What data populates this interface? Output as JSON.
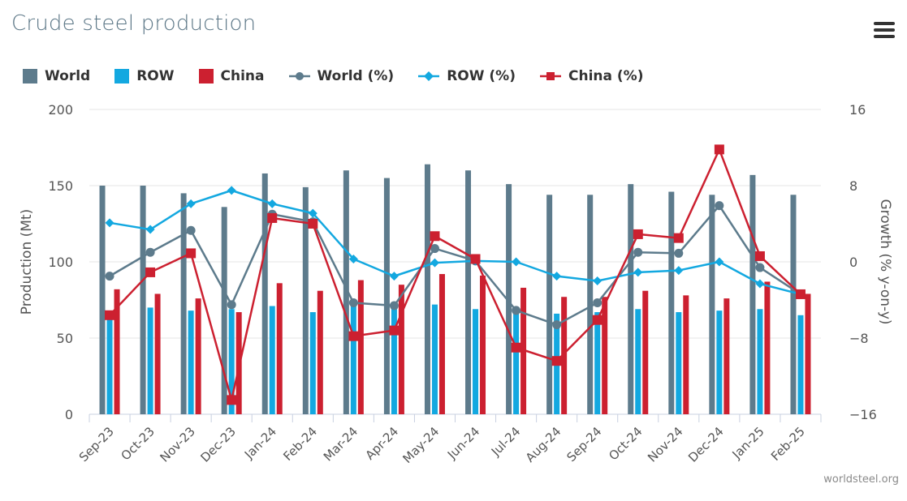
{
  "title": "Crude steel production",
  "menu_icon": "hamburger-menu-icon",
  "credit": "worldsteel.org",
  "colors": {
    "world": "#5d7b8c",
    "row": "#13a8e0",
    "china": "#cc2030",
    "grid": "#e6e6e6",
    "axis_text": "#555555"
  },
  "legend": [
    {
      "label": "World",
      "kind": "bar",
      "color": "#5d7b8c"
    },
    {
      "label": "ROW",
      "kind": "bar",
      "color": "#13a8e0"
    },
    {
      "label": "China",
      "kind": "bar",
      "color": "#cc2030"
    },
    {
      "label": "World (%)",
      "kind": "line-circle",
      "color": "#5d7b8c"
    },
    {
      "label": "ROW (%)",
      "kind": "line-diamond",
      "color": "#13a8e0"
    },
    {
      "label": "China (%)",
      "kind": "line-square",
      "color": "#cc2030"
    }
  ],
  "chart_data": {
    "type": "bar",
    "title": "Crude steel production",
    "categories": [
      "Sep-23",
      "Oct-23",
      "Nov-23",
      "Dec-23",
      "Jan-24",
      "Feb-24",
      "Mar-24",
      "Apr-24",
      "May-24",
      "Jun-24",
      "Jul-24",
      "Aug-24",
      "Sep-24",
      "Oct-24",
      "Nov-24",
      "Dec-24",
      "Jan-25",
      "Feb-25"
    ],
    "ylabel": "Production (Mt)",
    "y2label": "Growth (% y-on-y)",
    "ylim": [
      0,
      200
    ],
    "y2lim": [
      -16,
      16
    ],
    "yticks": [
      "0",
      "50",
      "100",
      "150",
      "200"
    ],
    "y2ticks": [
      "−16",
      "−8",
      "0",
      "8",
      "16"
    ],
    "grid": true,
    "legend_position": "top-left",
    "series": [
      {
        "name": "World",
        "type": "bar",
        "axis": "left",
        "values": [
          150,
          150,
          145,
          136,
          158,
          149,
          160,
          155,
          164,
          160,
          151,
          144,
          144,
          151,
          146,
          144,
          157,
          144
        ]
      },
      {
        "name": "ROW",
        "type": "bar",
        "axis": "left",
        "values": [
          63,
          70,
          68,
          69,
          71,
          67,
          71,
          71,
          72,
          69,
          69,
          66,
          67,
          69,
          67,
          68,
          69,
          65
        ]
      },
      {
        "name": "China",
        "type": "bar",
        "axis": "left",
        "values": [
          82,
          79,
          76,
          67,
          86,
          81,
          88,
          85,
          92,
          91,
          83,
          77,
          77,
          81,
          78,
          76,
          87,
          79
        ]
      },
      {
        "name": "World (%)",
        "type": "line",
        "axis": "right",
        "marker": "circle",
        "values": [
          -1.5,
          1.0,
          3.3,
          -4.5,
          5.0,
          4.2,
          -4.3,
          -4.6,
          1.4,
          0.1,
          -5.1,
          -6.6,
          -4.3,
          1.0,
          0.9,
          5.9,
          -0.6,
          -3.4
        ]
      },
      {
        "name": "ROW (%)",
        "type": "line",
        "axis": "right",
        "marker": "diamond",
        "values": [
          4.1,
          3.4,
          6.1,
          7.5,
          6.1,
          5.1,
          0.3,
          -1.5,
          -0.1,
          0.1,
          0.0,
          -1.5,
          -2.0,
          -1.1,
          -0.9,
          0.0,
          -2.3,
          -3.4
        ]
      },
      {
        "name": "China (%)",
        "type": "line",
        "axis": "right",
        "marker": "square",
        "values": [
          -5.6,
          -1.1,
          0.9,
          -14.5,
          4.6,
          4.0,
          -7.8,
          -7.2,
          2.7,
          0.3,
          -9.0,
          -10.4,
          -6.1,
          2.9,
          2.5,
          11.8,
          0.6,
          -3.4
        ]
      }
    ]
  }
}
